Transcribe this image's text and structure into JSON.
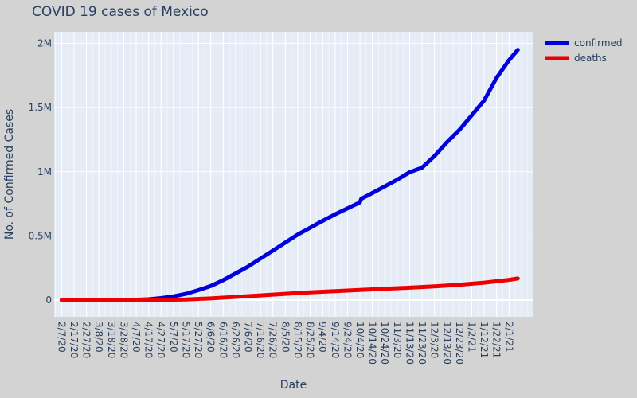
{
  "chart_data": {
    "type": "line",
    "title": "COVID 19 cases of Mexico",
    "xlabel": "Date",
    "ylabel": "No. of Confirmed Cases",
    "x_tick_labels": [
      "2/7/20",
      "2/17/20",
      "2/27/20",
      "3/8/20",
      "3/18/20",
      "3/28/20",
      "4/7/20",
      "4/17/20",
      "4/27/20",
      "5/7/20",
      "5/17/20",
      "5/27/20",
      "6/6/20",
      "6/16/20",
      "6/26/20",
      "7/6/20",
      "7/16/20",
      "7/26/20",
      "8/5/20",
      "8/15/20",
      "8/25/20",
      "9/4/20",
      "9/14/20",
      "9/24/20",
      "10/4/20",
      "10/14/20",
      "10/24/20",
      "11/3/20",
      "11/13/20",
      "11/23/20",
      "12/3/20",
      "12/13/20",
      "12/23/20",
      "1/2/21",
      "1/12/21",
      "1/22/21",
      "2/1/21"
    ],
    "y_tick_values": [
      0,
      500000,
      1000000,
      1500000,
      2000000
    ],
    "y_tick_labels": [
      "0",
      "0.5M",
      "1M",
      "1.5M",
      "2M"
    ],
    "xlim": [
      "2020-02-01",
      "2021-02-20"
    ],
    "ylim": [
      -130000,
      2090000
    ],
    "grid": true,
    "legend_position": "top-right",
    "series": [
      {
        "name": "confirmed",
        "color": "#0000dd",
        "points": [
          [
            "2020-02-07",
            0
          ],
          [
            "2020-02-27",
            0
          ],
          [
            "2020-03-18",
            200
          ],
          [
            "2020-04-07",
            2700
          ],
          [
            "2020-04-17",
            6300
          ],
          [
            "2020-04-27",
            15500
          ],
          [
            "2020-05-07",
            29600
          ],
          [
            "2020-05-17",
            49200
          ],
          [
            "2020-05-27",
            78000
          ],
          [
            "2020-06-06",
            110000
          ],
          [
            "2020-06-16",
            155000
          ],
          [
            "2020-06-26",
            208000
          ],
          [
            "2020-07-06",
            261000
          ],
          [
            "2020-07-16",
            324000
          ],
          [
            "2020-07-26",
            386000
          ],
          [
            "2020-08-05",
            449000
          ],
          [
            "2020-08-15",
            511000
          ],
          [
            "2020-08-25",
            564000
          ],
          [
            "2020-09-04",
            617000
          ],
          [
            "2020-09-14",
            668000
          ],
          [
            "2020-09-24",
            715000
          ],
          [
            "2020-10-04",
            761000
          ],
          [
            "2020-10-05",
            789000
          ],
          [
            "2020-10-14",
            834000
          ],
          [
            "2020-10-24",
            886000
          ],
          [
            "2020-11-03",
            938000
          ],
          [
            "2020-11-13",
            997000
          ],
          [
            "2020-11-23",
            1032000
          ],
          [
            "2020-12-03",
            1123000
          ],
          [
            "2020-12-13",
            1230000
          ],
          [
            "2020-12-23",
            1326000
          ],
          [
            "2021-01-02",
            1440000
          ],
          [
            "2021-01-12",
            1556000
          ],
          [
            "2021-01-22",
            1732000
          ],
          [
            "2021-02-01",
            1870000
          ],
          [
            "2021-02-08",
            1950000
          ]
        ]
      },
      {
        "name": "deaths",
        "color": "#ee0000",
        "points": [
          [
            "2020-02-07",
            0
          ],
          [
            "2020-03-18",
            0
          ],
          [
            "2020-04-07",
            130
          ],
          [
            "2020-04-27",
            1500
          ],
          [
            "2020-05-17",
            5100
          ],
          [
            "2020-06-06",
            13000
          ],
          [
            "2020-06-26",
            25000
          ],
          [
            "2020-07-16",
            37000
          ],
          [
            "2020-08-05",
            49000
          ],
          [
            "2020-08-25",
            61000
          ],
          [
            "2020-09-14",
            70000
          ],
          [
            "2020-10-04",
            79000
          ],
          [
            "2020-10-24",
            88000
          ],
          [
            "2020-11-13",
            97000
          ],
          [
            "2020-12-03",
            107000
          ],
          [
            "2020-12-23",
            120000
          ],
          [
            "2021-01-12",
            136000
          ],
          [
            "2021-02-01",
            158000
          ],
          [
            "2021-02-08",
            168000
          ]
        ]
      }
    ]
  }
}
